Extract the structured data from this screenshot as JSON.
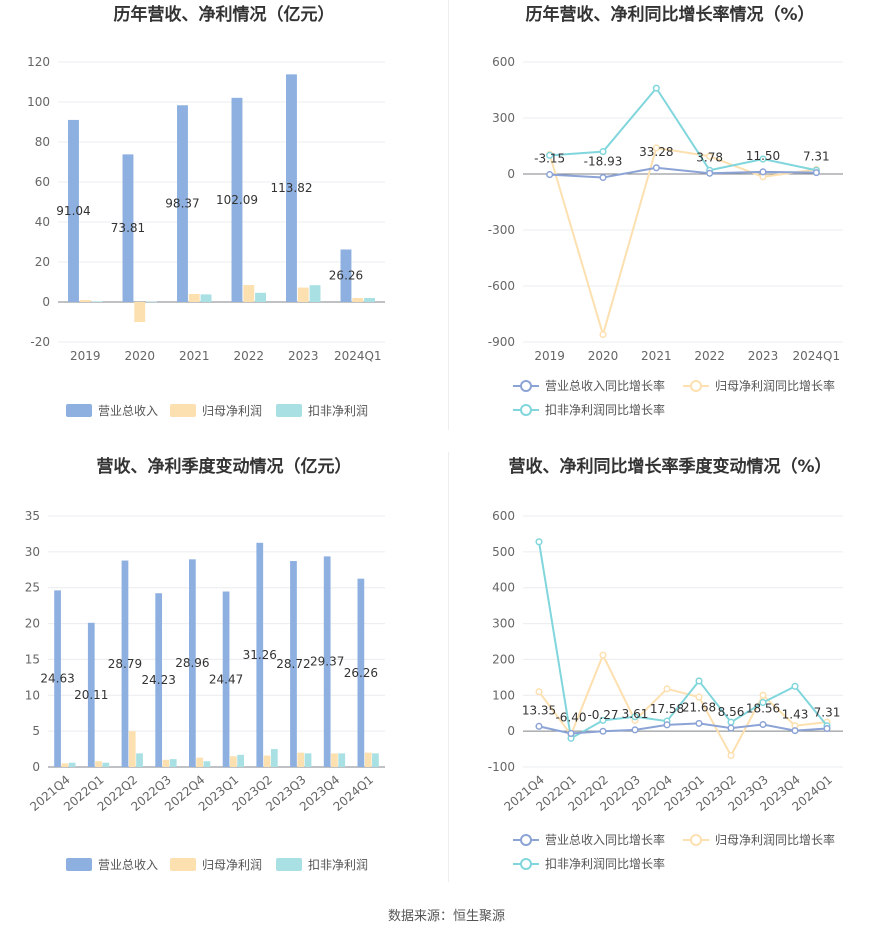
{
  "source": "数据来源：恒生聚源",
  "legend_items": {
    "rev": "营业总收入",
    "np": "归母净利润",
    "ded": "扣非净利润",
    "rev_yoy": "营业总收入同比增长率",
    "np_yoy": "归母净利润同比增长率",
    "ded_yoy": "扣非净利润同比增长率"
  },
  "colors": {
    "rev": "#8eb0e0",
    "np": "#fde0b0",
    "ded": "#a8e0e3",
    "rev_line": "#8ca3d6",
    "np_line": "#fde0b0",
    "ded_line": "#80d6dc"
  },
  "chart_data": [
    {
      "type": "bar",
      "title": "历年营收、净利情况（亿元）",
      "categories": [
        "2019",
        "2020",
        "2021",
        "2022",
        "2023",
        "2024Q1"
      ],
      "series": [
        {
          "name": "营业总收入",
          "values": [
            91.04,
            73.81,
            98.37,
            102.09,
            113.82,
            26.26
          ]
        },
        {
          "name": "归母净利润",
          "values": [
            1.0,
            -10.0,
            4.0,
            8.5,
            7.2,
            2.0
          ]
        },
        {
          "name": "扣非净利润",
          "values": [
            0.3,
            0.2,
            3.8,
            4.6,
            8.4,
            2.0
          ]
        }
      ],
      "labels": [
        "91.04",
        "73.81",
        "98.37",
        "102.09",
        "113.82",
        "26.26"
      ],
      "ylim": [
        -20,
        120
      ],
      "yticks": [
        -20,
        0,
        20,
        40,
        60,
        80,
        100,
        120
      ],
      "legend": "bottom"
    },
    {
      "type": "line",
      "title": "历年营收、净利同比增长率情况（%）",
      "categories": [
        "2019",
        "2020",
        "2021",
        "2022",
        "2023",
        "2024Q1"
      ],
      "series": [
        {
          "name": "营业总收入同比增长率",
          "values": [
            -3.15,
            -18.93,
            33.28,
            3.78,
            11.5,
            7.31
          ]
        },
        {
          "name": "归母净利润同比增长率",
          "values": [
            105,
            -860,
            140,
            95,
            -15,
            25
          ]
        },
        {
          "name": "扣非净利润同比增长率",
          "values": [
            100,
            120,
            460,
            20,
            80,
            20
          ]
        }
      ],
      "labels": [
        "-3.15",
        "-18.93",
        "33.28",
        "3.78",
        "11.50",
        "7.31"
      ],
      "ylim": [
        -900,
        600
      ],
      "yticks": [
        -900,
        -600,
        -300,
        0,
        300,
        600
      ],
      "legend": "bottom"
    },
    {
      "type": "bar",
      "title": "营收、净利季度变动情况（亿元）",
      "categories": [
        "2021Q4",
        "2022Q1",
        "2022Q2",
        "2022Q3",
        "2022Q4",
        "2023Q1",
        "2023Q2",
        "2023Q3",
        "2023Q4",
        "2024Q1"
      ],
      "series": [
        {
          "name": "营业总收入",
          "values": [
            24.63,
            20.11,
            28.79,
            24.23,
            28.96,
            24.47,
            31.26,
            28.72,
            29.37,
            26.26
          ]
        },
        {
          "name": "归母净利润",
          "values": [
            0.5,
            0.8,
            5.0,
            1.0,
            1.3,
            1.5,
            1.6,
            2.0,
            1.9,
            2.0
          ]
        },
        {
          "name": "扣非净利润",
          "values": [
            0.6,
            0.6,
            1.9,
            1.1,
            0.8,
            1.7,
            2.5,
            1.9,
            1.9,
            1.9
          ]
        }
      ],
      "labels": [
        "24.63",
        "20.11",
        "28.79",
        "24.23",
        "28.96",
        "24.47",
        "31.26",
        "28.72",
        "29.37",
        "26.26"
      ],
      "ylim": [
        0,
        35
      ],
      "yticks": [
        0,
        5,
        10,
        15,
        20,
        25,
        30,
        35
      ],
      "legend": "bottom"
    },
    {
      "type": "line",
      "title": "营收、净利同比增长率季度变动情况（%）",
      "categories": [
        "2021Q4",
        "2022Q1",
        "2022Q2",
        "2022Q3",
        "2022Q4",
        "2023Q1",
        "2023Q2",
        "2023Q3",
        "2023Q4",
        "2024Q1"
      ],
      "series": [
        {
          "name": "营业总收入同比增长率",
          "values": [
            13.35,
            -6.4,
            -0.27,
            3.61,
            17.58,
            21.68,
            8.56,
            18.56,
            1.43,
            7.31
          ]
        },
        {
          "name": "归母净利润同比增长率",
          "values": [
            110,
            -10,
            212,
            30,
            118,
            95,
            -68,
            100,
            15,
            25
          ]
        },
        {
          "name": "扣非净利润同比增长率",
          "values": [
            528,
            -20,
            30,
            40,
            28,
            140,
            25,
            80,
            125,
            15
          ]
        }
      ],
      "labels": [
        "13.35",
        "-6.40",
        "-0.27",
        "3.61",
        "17.58",
        "21.68",
        "8.56",
        "18.56",
        "1.43",
        "7.31"
      ],
      "ylim": [
        -100,
        600
      ],
      "yticks": [
        -100,
        0,
        100,
        200,
        300,
        400,
        500,
        600
      ],
      "legend": "bottom"
    }
  ]
}
